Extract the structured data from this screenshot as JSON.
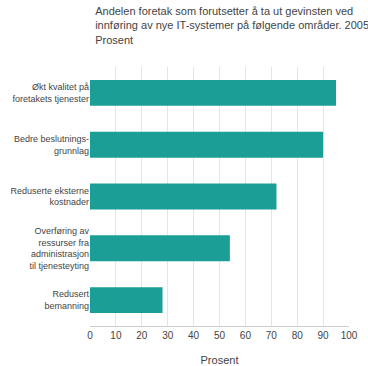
{
  "chart_data": {
    "type": "bar",
    "orientation": "horizontal",
    "title": "Andelen foretak som forutsetter å ta ut gevinsten ved\ninnføring av nye IT-systemer på følgende områder. 2005.\nProsent",
    "categories": [
      "Redusert\nbemanning",
      "Overføring av\nressurser fra\nadministrasjon\ntil tjenesteyting",
      "Reduserte eksterne\nkostnader",
      "Bedre beslutnings-\ngrunnlag",
      "Økt kvalitet på\nforetakets tjenester"
    ],
    "values": [
      28,
      54,
      72,
      90,
      95
    ],
    "color": "#1a9e96",
    "xlabel": "Prosent",
    "xlim": [
      0,
      100
    ],
    "xticks": [
      0,
      10,
      20,
      30,
      40,
      50,
      60,
      70,
      80,
      90,
      100
    ],
    "grid": true
  }
}
